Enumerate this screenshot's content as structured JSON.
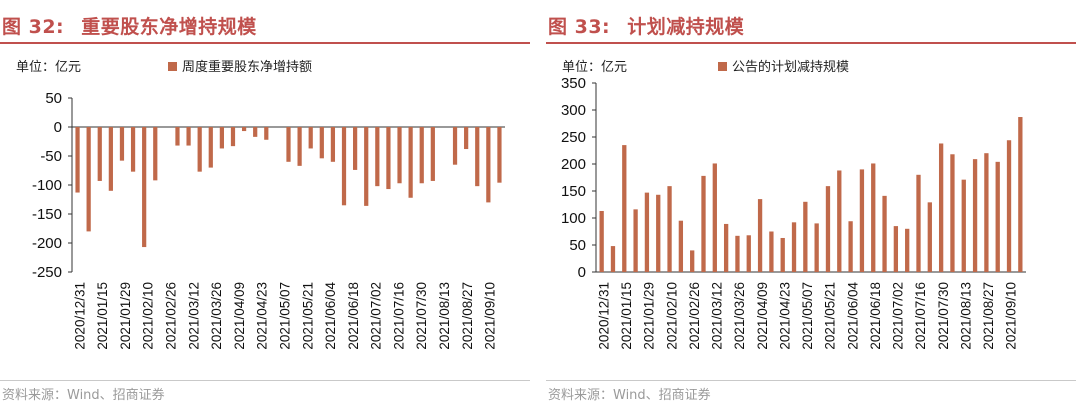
{
  "colors": {
    "accent": "#c0504d",
    "bar": "#c0694a",
    "axis": "#333333"
  },
  "chart_data": [
    {
      "type": "bar",
      "figure_label": "图 32:",
      "title": "重要股东净增持规模",
      "unit_label": "单位：亿元",
      "legend": "周度重要股东净增持额",
      "source": "资料来源：Wind、招商证券",
      "ylim": [
        -250,
        50
      ],
      "yticks": [
        50,
        0,
        -50,
        -100,
        -150,
        -200,
        -250
      ],
      "category_labels": [
        "2020/12/31",
        "2021/01/15",
        "2021/01/29",
        "2021/02/10",
        "2021/02/26",
        "2021/03/12",
        "2021/03/26",
        "2021/04/09",
        "2021/04/23",
        "2021/05/07",
        "2021/05/21",
        "2021/06/04",
        "2021/06/18",
        "2021/07/02",
        "2021/07/16",
        "2021/07/30",
        "2021/08/13",
        "2021/08/27",
        "2021/09/10"
      ],
      "values": [
        -113,
        -180,
        -93,
        -110,
        -58,
        -77,
        -207,
        -92,
        0,
        -32,
        -32,
        -77,
        -70,
        -37,
        -33,
        -7,
        -17,
        -22,
        0,
        -60,
        -67,
        -37,
        -54,
        -60,
        -135,
        -74,
        -136,
        -102,
        -107,
        -97,
        -122,
        -97,
        -93,
        0,
        -65,
        -38,
        -102,
        -130,
        -96
      ],
      "series": [
        {
          "name": "周度重要股东净增持额"
        }
      ]
    },
    {
      "type": "bar",
      "figure_label": "图 33:",
      "title": "计划减持规模",
      "unit_label": "单位：亿元",
      "legend": "公告的计划减持规模",
      "source": "资料来源：Wind、招商证券",
      "ylim": [
        0,
        350
      ],
      "yticks": [
        350,
        300,
        250,
        200,
        150,
        100,
        50,
        0
      ],
      "category_labels": [
        "2020/12/31",
        "2021/01/15",
        "2021/01/29",
        "2021/02/10",
        "2021/02/26",
        "2021/03/12",
        "2021/03/26",
        "2021/04/09",
        "2021/04/23",
        "2021/05/07",
        "2021/05/21",
        "2021/06/04",
        "2021/06/18",
        "2021/07/02",
        "2021/07/16",
        "2021/07/30",
        "2021/08/13",
        "2021/08/27",
        "2021/09/10"
      ],
      "values": [
        113,
        48,
        235,
        116,
        147,
        143,
        159,
        95,
        40,
        178,
        201,
        89,
        67,
        68,
        135,
        75,
        63,
        92,
        130,
        90,
        159,
        188,
        94,
        190,
        201,
        141,
        85,
        80,
        180,
        129,
        238,
        218,
        171,
        209,
        220,
        204,
        244,
        287
      ],
      "series": [
        {
          "name": "公告的计划减持规模"
        }
      ]
    }
  ]
}
